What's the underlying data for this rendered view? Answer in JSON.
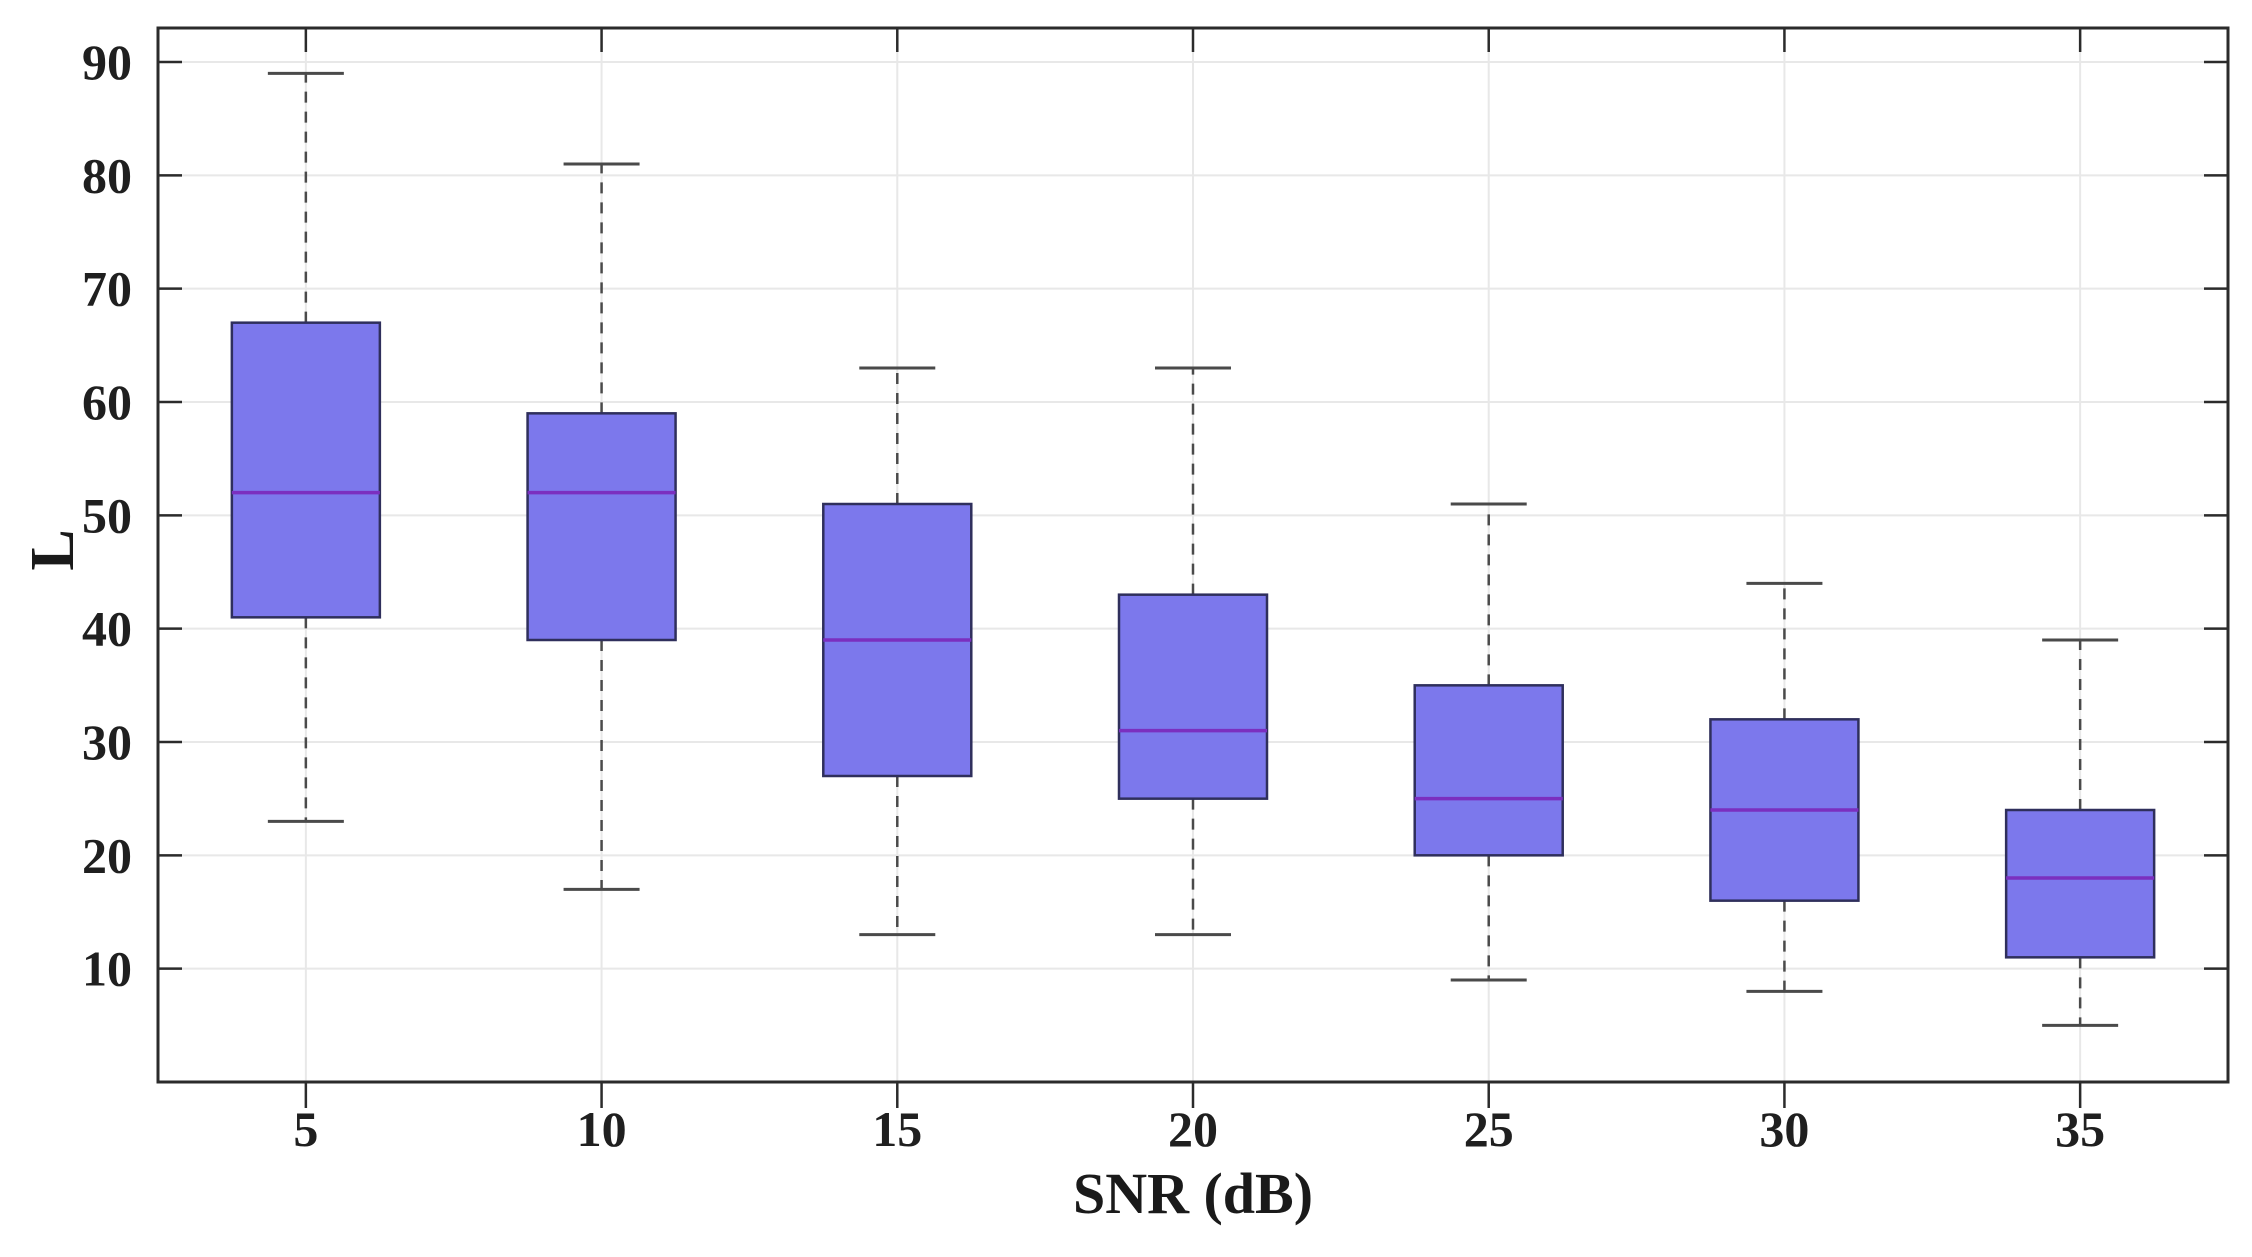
{
  "chart_data": {
    "type": "boxplot",
    "title": "",
    "xlabel": "SNR (dB)",
    "ylabel": "L",
    "categories": [
      "5",
      "10",
      "15",
      "20",
      "25",
      "30",
      "35"
    ],
    "x_values": [
      5,
      10,
      15,
      20,
      25,
      30,
      35
    ],
    "yticks": [
      10,
      20,
      30,
      40,
      50,
      60,
      70,
      80,
      90
    ],
    "ylim": [
      0,
      93
    ],
    "grid": true,
    "legend": "none",
    "boxes": [
      {
        "category": "5",
        "whisker_low": 23,
        "q1": 41,
        "median": 52,
        "q3": 67,
        "whisker_high": 89
      },
      {
        "category": "10",
        "whisker_low": 17,
        "q1": 39,
        "median": 52,
        "q3": 59,
        "whisker_high": 81
      },
      {
        "category": "15",
        "whisker_low": 13,
        "q1": 27,
        "median": 39,
        "q3": 51,
        "whisker_high": 63
      },
      {
        "category": "20",
        "whisker_low": 13,
        "q1": 25,
        "median": 31,
        "q3": 43,
        "whisker_high": 63
      },
      {
        "category": "25",
        "whisker_low": 9,
        "q1": 20,
        "median": 25,
        "q3": 35,
        "whisker_high": 51
      },
      {
        "category": "30",
        "whisker_low": 8,
        "q1": 16,
        "median": 24,
        "q3": 32,
        "whisker_high": 44
      },
      {
        "category": "35",
        "whisker_low": 5,
        "q1": 11,
        "median": 18,
        "q3": 24,
        "whisker_high": 39
      }
    ],
    "colors": {
      "box_fill": "#7C78EC",
      "box_edge": "#2F2F5C",
      "median_line": "#7B2FBF",
      "whisker": "#4A4A4A",
      "grid_line": "#E8E8E8",
      "axis": "#2B2B2B",
      "tick_text": "#1F1F1F",
      "background": "#FFFFFF"
    }
  }
}
